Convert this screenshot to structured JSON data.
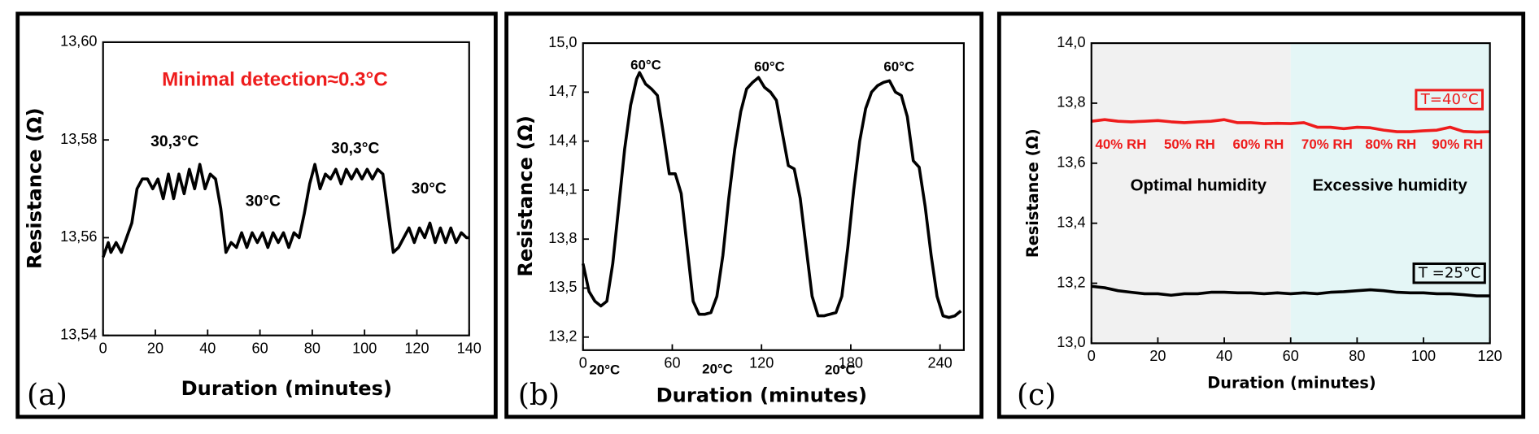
{
  "chart_data": [
    {
      "type": "line",
      "panel_label": "(a)",
      "xlabel": "Duration (minutes)",
      "ylabel": "Resistance (Ω)",
      "xlim": [
        0,
        140
      ],
      "xticks": [
        0,
        20,
        40,
        60,
        80,
        100,
        120,
        140
      ],
      "ylim": [
        13.54,
        13.6
      ],
      "yticks": [
        {
          "value": 13.54,
          "label": "13,54"
        },
        {
          "value": 13.56,
          "label": "13,56"
        },
        {
          "value": 13.58,
          "label": "13,58"
        },
        {
          "value": 13.6,
          "label": "13,60"
        }
      ],
      "annotations": [
        {
          "text": "Minimal detection≈0.3°C",
          "color": "#ee1c1c"
        },
        {
          "text": "30,3°C",
          "color": "#000000"
        },
        {
          "text": "30°C",
          "color": "#000000"
        },
        {
          "text": "30,3°C",
          "color": "#000000"
        },
        {
          "text": "30°C",
          "color": "#000000"
        }
      ],
      "x": [
        0,
        2,
        3,
        5,
        7,
        9,
        11,
        13,
        15,
        17,
        19,
        21,
        23,
        25,
        27,
        29,
        31,
        33,
        35,
        37,
        39,
        41,
        43,
        45,
        47,
        49,
        51,
        53,
        55,
        57,
        59,
        61,
        63,
        65,
        67,
        69,
        71,
        73,
        75,
        77,
        79,
        81,
        83,
        85,
        87,
        89,
        91,
        93,
        95,
        97,
        99,
        101,
        103,
        105,
        107,
        109,
        111,
        113,
        115,
        117,
        119,
        121,
        123,
        125,
        127,
        129,
        131,
        133,
        135,
        137,
        139,
        140
      ],
      "series": [
        {
          "color": "#000000",
          "values": [
            13.556,
            13.559,
            13.557,
            13.559,
            13.557,
            13.56,
            13.563,
            13.57,
            13.572,
            13.572,
            13.57,
            13.572,
            13.568,
            13.573,
            13.568,
            13.573,
            13.569,
            13.574,
            13.57,
            13.575,
            13.57,
            13.573,
            13.572,
            13.566,
            13.557,
            13.559,
            13.558,
            13.561,
            13.558,
            13.561,
            13.559,
            13.561,
            13.558,
            13.561,
            13.559,
            13.561,
            13.558,
            13.561,
            13.56,
            13.565,
            13.571,
            13.575,
            13.57,
            13.573,
            13.572,
            13.574,
            13.571,
            13.574,
            13.572,
            13.574,
            13.572,
            13.574,
            13.572,
            13.574,
            13.573,
            13.565,
            13.557,
            13.558,
            13.56,
            13.562,
            13.559,
            13.562,
            13.56,
            13.563,
            13.559,
            13.562,
            13.559,
            13.562,
            13.559,
            13.561,
            13.56,
            13.56
          ]
        }
      ]
    },
    {
      "type": "line",
      "panel_label": "(b)",
      "xlabel": "Duration (minutes)",
      "ylabel": "Resistance (Ω)",
      "xlim": [
        0,
        256
      ],
      "xticks": [
        0,
        60,
        120,
        180,
        240
      ],
      "ylim": [
        13.12,
        15.0
      ],
      "yticks": [
        {
          "value": 13.2,
          "label": "13,2"
        },
        {
          "value": 13.5,
          "label": "13,5"
        },
        {
          "value": 13.8,
          "label": "13,8"
        },
        {
          "value": 14.1,
          "label": "14,1"
        },
        {
          "value": 14.4,
          "label": "14,4"
        },
        {
          "value": 14.7,
          "label": "14,7"
        },
        {
          "value": 15.0,
          "label": "15,0"
        }
      ],
      "annotations": [
        {
          "text": "60°C",
          "color": "#000000"
        },
        {
          "text": "60°C",
          "color": "#000000"
        },
        {
          "text": "60°C",
          "color": "#000000"
        },
        {
          "text": "20°C",
          "color": "#000000"
        },
        {
          "text": "20°C",
          "color": "#000000"
        },
        {
          "text": "20°C",
          "color": "#000000"
        }
      ],
      "x": [
        0,
        4,
        8,
        12,
        16,
        20,
        24,
        28,
        32,
        36,
        38,
        42,
        46,
        50,
        54,
        58,
        62,
        66,
        70,
        74,
        78,
        82,
        86,
        90,
        94,
        98,
        102,
        106,
        110,
        114,
        118,
        122,
        126,
        130,
        134,
        138,
        142,
        146,
        150,
        154,
        158,
        162,
        166,
        170,
        174,
        178,
        182,
        186,
        190,
        194,
        198,
        202,
        206,
        210,
        214,
        218,
        222,
        226,
        230,
        234,
        238,
        242,
        246,
        250,
        254
      ],
      "series": [
        {
          "color": "#000000",
          "values": [
            13.65,
            13.48,
            13.42,
            13.39,
            13.42,
            13.65,
            14.0,
            14.35,
            14.62,
            14.78,
            14.82,
            14.75,
            14.72,
            14.68,
            14.45,
            14.2,
            14.2,
            14.08,
            13.75,
            13.42,
            13.34,
            13.34,
            13.35,
            13.45,
            13.7,
            14.05,
            14.35,
            14.58,
            14.72,
            14.76,
            14.79,
            14.73,
            14.7,
            14.65,
            14.45,
            14.25,
            14.23,
            14.05,
            13.75,
            13.45,
            13.33,
            13.33,
            13.34,
            13.35,
            13.45,
            13.75,
            14.1,
            14.4,
            14.6,
            14.7,
            14.74,
            14.76,
            14.77,
            14.7,
            14.68,
            14.55,
            14.28,
            14.24,
            14.0,
            13.7,
            13.45,
            13.33,
            13.32,
            13.33,
            13.36
          ]
        }
      ]
    },
    {
      "type": "line",
      "panel_label": "(c)",
      "xlabel": "Duration (minutes)",
      "ylabel": "Resistance (Ω)",
      "xlim": [
        0,
        120
      ],
      "xticks": [
        0,
        20,
        40,
        60,
        80,
        100,
        120
      ],
      "ylim": [
        13.0,
        14.0
      ],
      "yticks": [
        {
          "value": 13.0,
          "label": "13,0"
        },
        {
          "value": 13.2,
          "label": "13,2"
        },
        {
          "value": 13.4,
          "label": "13,4"
        },
        {
          "value": 13.6,
          "label": "13,6"
        },
        {
          "value": 13.8,
          "label": "13,8"
        },
        {
          "value": 14.0,
          "label": "14,0"
        }
      ],
      "regions": [
        {
          "xlim": [
            0,
            60
          ],
          "color": "#f1f1f1"
        },
        {
          "xlim": [
            60,
            120
          ],
          "color": "#e4f6f6"
        }
      ],
      "annotations": [
        {
          "text": "40% RH",
          "color": "#ee1c1c"
        },
        {
          "text": "50% RH",
          "color": "#ee1c1c"
        },
        {
          "text": "60% RH",
          "color": "#ee1c1c"
        },
        {
          "text": "70% RH",
          "color": "#ee1c1c"
        },
        {
          "text": "80% RH",
          "color": "#ee1c1c"
        },
        {
          "text": "90% RH",
          "color": "#ee1c1c"
        },
        {
          "text": "Optimal humidity",
          "color": "#000000"
        },
        {
          "text": "Excessive humidity",
          "color": "#000000"
        }
      ],
      "x": [
        0,
        4,
        8,
        12,
        16,
        20,
        24,
        28,
        32,
        36,
        40,
        44,
        48,
        52,
        56,
        60,
        64,
        68,
        72,
        76,
        80,
        84,
        88,
        92,
        96,
        100,
        104,
        108,
        112,
        116,
        120
      ],
      "series": [
        {
          "name": "T=40°C",
          "color": "#ee1c1c",
          "values": [
            13.74,
            13.745,
            13.74,
            13.738,
            13.74,
            13.742,
            13.738,
            13.735,
            13.738,
            13.74,
            13.745,
            13.735,
            13.735,
            13.732,
            13.733,
            13.732,
            13.735,
            13.72,
            13.72,
            13.715,
            13.72,
            13.718,
            13.71,
            13.705,
            13.705,
            13.708,
            13.71,
            13.72,
            13.706,
            13.704,
            13.705
          ]
        },
        {
          "name": "T =25°C",
          "color": "#000000",
          "values": [
            13.19,
            13.185,
            13.175,
            13.17,
            13.165,
            13.165,
            13.16,
            13.165,
            13.165,
            13.17,
            13.17,
            13.168,
            13.168,
            13.165,
            13.168,
            13.165,
            13.168,
            13.165,
            13.17,
            13.172,
            13.175,
            13.178,
            13.175,
            13.17,
            13.168,
            13.168,
            13.165,
            13.165,
            13.162,
            13.158,
            13.158
          ]
        }
      ]
    }
  ]
}
